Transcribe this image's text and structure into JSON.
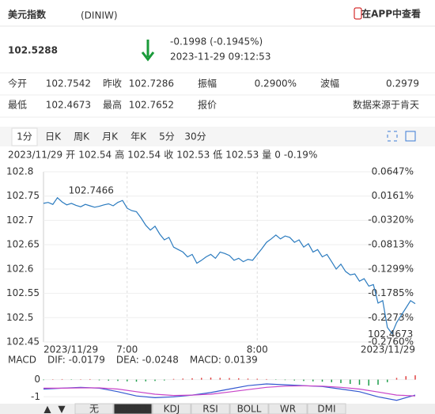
{
  "header": {
    "title": "美元指数",
    "code": "(DINIW)",
    "app_link": "在APP中查看"
  },
  "quote": {
    "price": "102.5288",
    "change": "-0.1998 (-0.1945%)",
    "time": "2023-11-29 09:12:53"
  },
  "stats": {
    "rows": [
      [
        {
          "label": "今开",
          "value": "102.7542"
        },
        {
          "label": "昨收",
          "value": "102.7286"
        },
        {
          "label": "振幅",
          "value": "0.2900%"
        },
        {
          "label": "波幅",
          "value": "0.2979"
        }
      ],
      [
        {
          "label": "最低",
          "value": "102.4673"
        },
        {
          "label": "最高",
          "value": "102.7652"
        },
        {
          "label": "报价",
          "value": "数据来源于肯天"
        }
      ]
    ]
  },
  "tabs": [
    "1分",
    "日K",
    "周K",
    "月K",
    "年K",
    "5分",
    "30分"
  ],
  "info_bar": {
    "date": "2023/11/29",
    "items": [
      {
        "label": "开",
        "value": "102.54"
      },
      {
        "label": "高",
        "value": "102.54"
      },
      {
        "label": "收",
        "value": "102.53"
      },
      {
        "label": "低",
        "value": "102.53"
      },
      {
        "label": "量",
        "value": "0"
      }
    ],
    "change": "-0.19%"
  },
  "indicator_tabs": [
    "无",
    "MACD",
    "KDJ",
    "RSI",
    "BOLL",
    "WR",
    "DMI"
  ],
  "chart_data": [
    {
      "type": "line",
      "color": "#2b7bbf",
      "grid": true,
      "categories": [
        "2023/11/29",
        null,
        null,
        null,
        null,
        null,
        null,
        null,
        null,
        null,
        null,
        null,
        null,
        null,
        null,
        null,
        null,
        null,
        "7:00",
        null,
        null,
        null,
        null,
        null,
        null,
        null,
        null,
        null,
        null,
        null,
        null,
        null,
        null,
        null,
        null,
        null,
        null,
        null,
        null,
        null,
        null,
        null,
        null,
        null,
        null,
        null,
        "8:00",
        null,
        null,
        null,
        null,
        null,
        null,
        null,
        null,
        null,
        null,
        null,
        null,
        null,
        null,
        null,
        null,
        null,
        null,
        null,
        null,
        null,
        null,
        null,
        null,
        null,
        null,
        null,
        null,
        null,
        null,
        null,
        null,
        null,
        "2023/11/29"
      ],
      "values": [
        102.735,
        102.737,
        102.733,
        102.7466,
        102.738,
        102.732,
        102.735,
        102.731,
        102.728,
        102.733,
        102.73,
        102.727,
        102.729,
        102.732,
        102.734,
        102.73,
        102.737,
        102.741,
        102.725,
        102.72,
        102.718,
        102.705,
        102.69,
        102.68,
        102.688,
        102.672,
        102.66,
        102.665,
        102.645,
        102.64,
        102.635,
        102.625,
        102.63,
        102.612,
        102.618,
        102.625,
        102.63,
        102.622,
        102.635,
        102.632,
        102.628,
        102.618,
        102.622,
        102.615,
        102.62,
        102.618,
        102.63,
        102.642,
        102.655,
        102.662,
        102.67,
        102.662,
        102.668,
        102.665,
        102.655,
        102.66,
        102.645,
        102.652,
        102.635,
        102.64,
        102.625,
        102.63,
        102.615,
        102.6,
        102.61,
        102.595,
        102.588,
        102.59,
        102.575,
        102.58,
        102.565,
        102.568,
        102.53,
        102.535,
        102.48,
        102.4673,
        102.49,
        102.505,
        102.52,
        102.535,
        102.5288
      ],
      "ylim": [
        102.45,
        102.8
      ],
      "yticks": [
        102.8,
        102.75,
        102.7,
        102.65,
        102.6,
        102.55,
        102.5,
        102.45
      ],
      "y2lim": [
        -0.276,
        0.0647
      ],
      "y2ticks": [
        {
          "value": 0.0647,
          "label": "0.0647%"
        },
        {
          "value": 0.0161,
          "label": "0.0161%"
        },
        {
          "value": -0.032,
          "label": "-0.0320%"
        },
        {
          "value": -0.0813,
          "label": "-0.0813%"
        },
        {
          "value": -0.1299,
          "label": "-0.1299%"
        },
        {
          "value": -0.1785,
          "label": "-0.1785%"
        },
        {
          "value": -0.2273,
          "label": "-0.2273%"
        },
        {
          "value": -0.276,
          "label": "-0.2760%"
        }
      ],
      "annotations": [
        "102.7466",
        "102.4673"
      ]
    },
    {
      "type": "macd",
      "legend_title": "MACD",
      "negative_color": "#1e9e4a",
      "series": [
        {
          "name": "DIF: -0.0179",
          "color": "#3358d0",
          "values": [
            -0.55,
            -0.5,
            -0.45,
            -0.5,
            -0.7,
            -0.95,
            -1.05,
            -1.0,
            -0.9,
            -0.75,
            -0.55,
            -0.35,
            -0.25,
            -0.3,
            -0.35,
            -0.4,
            -0.55,
            -0.7,
            -1.0,
            -1.2,
            -0.9
          ]
        },
        {
          "name": "DEA: -0.0248",
          "color": "#c844c8",
          "values": [
            -0.5,
            -0.5,
            -0.48,
            -0.48,
            -0.55,
            -0.7,
            -0.85,
            -0.92,
            -0.9,
            -0.85,
            -0.72,
            -0.58,
            -0.45,
            -0.38,
            -0.36,
            -0.38,
            -0.45,
            -0.55,
            -0.72,
            -0.9,
            -0.95
          ]
        },
        {
          "name": "MACD: 0.0139",
          "color": "#e04040",
          "values": [
            -0.03,
            0.02,
            0.03,
            -0.02,
            0.02,
            0.03,
            -0.04,
            -0.06,
            -0.08,
            -0.1,
            -0.12,
            -0.1,
            -0.08,
            -0.05,
            0.04,
            0.06,
            0.08,
            0.1,
            0.12,
            0.1,
            0.09,
            0.08,
            0.06,
            0.05,
            0.03,
            -0.02,
            -0.03,
            -0.05,
            -0.08,
            -0.1,
            -0.12,
            -0.15,
            -0.2,
            -0.25,
            -0.3,
            -0.35,
            -0.3,
            -0.15,
            0.1,
            0.2,
            0.25
          ]
        }
      ],
      "ylim": [
        -1.4,
        0.9
      ],
      "yticks": [
        0,
        -1
      ]
    }
  ]
}
